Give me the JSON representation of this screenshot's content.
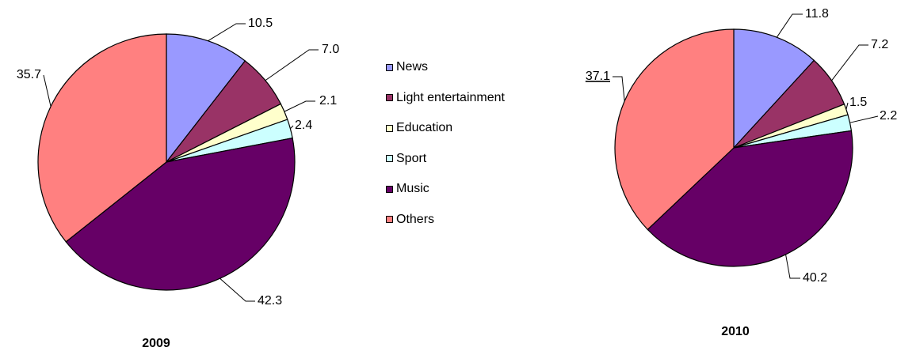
{
  "legend": {
    "items": [
      {
        "label": "News",
        "color": "#9999ff"
      },
      {
        "label": "Light entertainment",
        "color": "#993366"
      },
      {
        "label": "Education",
        "color": "#ffffcc"
      },
      {
        "label": "Sport",
        "color": "#ccffff"
      },
      {
        "label": "Music",
        "color": "#660066"
      },
      {
        "label": "Others",
        "color": "#ff8080"
      }
    ]
  },
  "chart_data": [
    {
      "type": "pie",
      "title": "2009",
      "categories": [
        "News",
        "Light entertainment",
        "Education",
        "Sport",
        "Music",
        "Others"
      ],
      "values": [
        10.5,
        7.0,
        2.1,
        2.4,
        42.3,
        35.7
      ],
      "labels": [
        "10.5",
        "7.0",
        "2.1",
        "2.4",
        "42.3",
        "35.7"
      ],
      "colors": [
        "#9999ff",
        "#993366",
        "#ffffcc",
        "#ccffff",
        "#660066",
        "#ff8080"
      ],
      "legend": "between charts"
    },
    {
      "type": "pie",
      "title": "2010",
      "categories": [
        "News",
        "Light entertainment",
        "Education",
        "Sport",
        "Music",
        "Others"
      ],
      "values": [
        11.8,
        7.2,
        1.5,
        2.2,
        40.2,
        37.1
      ],
      "labels": [
        "11.8",
        "7.2",
        "1.5",
        "2.2",
        "40.2",
        "37.1"
      ],
      "colors": [
        "#9999ff",
        "#993366",
        "#ffffcc",
        "#ccffff",
        "#660066",
        "#ff8080"
      ],
      "legend": "between charts"
    }
  ]
}
